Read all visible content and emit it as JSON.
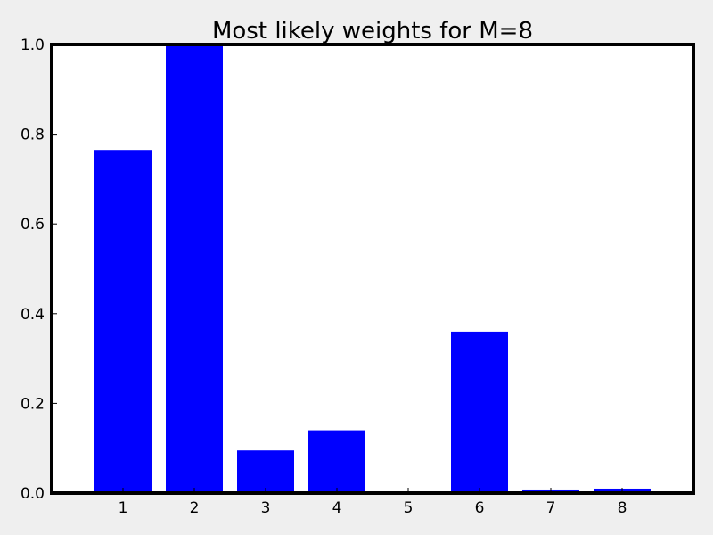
{
  "chart_data": {
    "type": "bar",
    "title": "Most likely weights for M=8",
    "xlabel": "",
    "ylabel": "",
    "categories": [
      "1",
      "2",
      "3",
      "4",
      "5",
      "6",
      "7",
      "8"
    ],
    "values": [
      0.765,
      1.0,
      0.095,
      0.14,
      0.0,
      0.36,
      0.008,
      0.01
    ],
    "ylim": [
      0.0,
      1.0
    ],
    "xlim": [
      0.0,
      9.0
    ],
    "yticks": [
      "0.0",
      "0.2",
      "0.4",
      "0.6",
      "0.8",
      "1.0"
    ],
    "grid": false,
    "bar_color": "#0000ff",
    "background_color": "#ffffff",
    "figure_color": "#efefef"
  }
}
